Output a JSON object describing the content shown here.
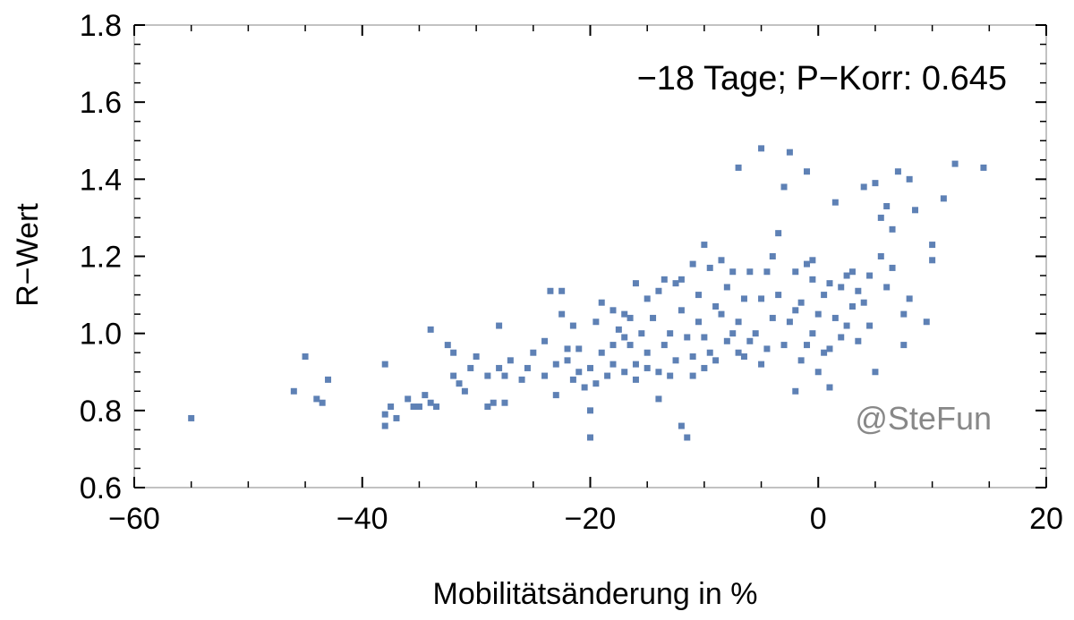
{
  "chart_data": {
    "type": "scatter",
    "title": "",
    "annotation": "−18 Tage; P−Korr: 0.645",
    "watermark": "@SteFun",
    "xlabel": "Mobilitätsänderung in %",
    "ylabel": "R−Wert",
    "xlim": [
      -60,
      20
    ],
    "ylim": [
      0.6,
      1.8
    ],
    "xticks": [
      -60,
      -40,
      -20,
      0,
      20
    ],
    "xtick_labels": [
      "−60",
      "−40",
      "−20",
      "0",
      "20"
    ],
    "yticks": [
      0.6,
      0.8,
      1.0,
      1.2,
      1.4,
      1.6,
      1.8
    ],
    "ytick_labels": [
      "0.6",
      "0.8",
      "1.0",
      "1.2",
      "1.4",
      "1.6",
      "1.8"
    ],
    "grid": false,
    "marker_color": "#5e81b5",
    "points": [
      [
        -55,
        0.78
      ],
      [
        -46,
        0.85
      ],
      [
        -45,
        0.94
      ],
      [
        -44,
        0.83
      ],
      [
        -43,
        0.88
      ],
      [
        -43.5,
        0.82
      ],
      [
        -38,
        0.92
      ],
      [
        -38,
        0.79
      ],
      [
        -38,
        0.76
      ],
      [
        -37.5,
        0.81
      ],
      [
        -37,
        0.78
      ],
      [
        -36,
        0.83
      ],
      [
        -35.5,
        0.81
      ],
      [
        -35,
        0.81
      ],
      [
        -34.5,
        0.84
      ],
      [
        -34,
        1.01
      ],
      [
        -34,
        0.82
      ],
      [
        -33.5,
        0.81
      ],
      [
        -32.5,
        0.97
      ],
      [
        -32,
        0.95
      ],
      [
        -32,
        0.89
      ],
      [
        -31.5,
        0.87
      ],
      [
        -31,
        0.85
      ],
      [
        -30.5,
        0.91
      ],
      [
        -30,
        0.94
      ],
      [
        -29,
        0.89
      ],
      [
        -29,
        0.81
      ],
      [
        -28.5,
        0.82
      ],
      [
        -28,
        1.02
      ],
      [
        -28,
        0.91
      ],
      [
        -27.5,
        0.89
      ],
      [
        -27.5,
        0.82
      ],
      [
        -27,
        0.93
      ],
      [
        -26,
        0.88
      ],
      [
        -25.5,
        0.91
      ],
      [
        -25,
        0.95
      ],
      [
        -24,
        0.89
      ],
      [
        -24,
        0.98
      ],
      [
        -23.5,
        1.11
      ],
      [
        -23,
        0.92
      ],
      [
        -23,
        0.84
      ],
      [
        -22.5,
        1.11
      ],
      [
        -22.5,
        1.05
      ],
      [
        -22,
        0.93
      ],
      [
        -22,
        0.96
      ],
      [
        -21.5,
        1.02
      ],
      [
        -21,
        0.96
      ],
      [
        -21,
        0.9
      ],
      [
        -20.5,
        0.86
      ],
      [
        -20,
        0.91
      ],
      [
        -20,
        0.8
      ],
      [
        -20,
        0.73
      ],
      [
        -19.5,
        1.03
      ],
      [
        -19,
        1.08
      ],
      [
        -19,
        0.95
      ],
      [
        -18.5,
        0.89
      ],
      [
        -18,
        1.06
      ],
      [
        -18,
        0.92
      ],
      [
        -17.5,
        1.01
      ],
      [
        -17,
        1.05
      ],
      [
        -17,
        0.9
      ],
      [
        -16.5,
        0.97
      ],
      [
        -16,
        1.13
      ],
      [
        -16,
        0.88
      ],
      [
        -15.5,
        1.0
      ],
      [
        -15,
        1.09
      ],
      [
        -15,
        0.95
      ],
      [
        -14.5,
        1.04
      ],
      [
        -14,
        0.9
      ],
      [
        -14,
        0.83
      ],
      [
        -13.5,
        1.14
      ],
      [
        -13,
        1.0
      ],
      [
        -12.5,
        0.93
      ],
      [
        -12,
        1.14
      ],
      [
        -12,
        0.76
      ],
      [
        -11.5,
        0.73
      ],
      [
        -11,
        1.18
      ],
      [
        -11,
        0.89
      ],
      [
        -10.5,
        1.03
      ],
      [
        -10,
        0.99
      ],
      [
        -10,
        1.23
      ],
      [
        -9.5,
        0.95
      ],
      [
        -9,
        1.07
      ],
      [
        -8.5,
        1.19
      ],
      [
        -8,
        0.98
      ],
      [
        -7.5,
        1.16
      ],
      [
        -7,
        1.43
      ],
      [
        -7,
        1.03
      ],
      [
        -6.5,
        0.94
      ],
      [
        -6,
        1.16
      ],
      [
        -5.5,
        1.0
      ],
      [
        -5,
        1.48
      ],
      [
        -5,
        1.09
      ],
      [
        -4.5,
        1.16
      ],
      [
        -4,
        1.2
      ],
      [
        -3.5,
        1.26
      ],
      [
        -3,
        1.38
      ],
      [
        -2.5,
        1.47
      ],
      [
        -2.5,
        1.03
      ],
      [
        -2,
        1.16
      ],
      [
        -2,
        0.85
      ],
      [
        -1.5,
        1.08
      ],
      [
        -1,
        1.42
      ],
      [
        -1,
        0.97
      ],
      [
        -0.5,
        1.19
      ],
      [
        0,
        1.05
      ],
      [
        0.5,
        0.95
      ],
      [
        1,
        0.86
      ],
      [
        1.5,
        1.34
      ],
      [
        2,
        1.12
      ],
      [
        2.5,
        1.02
      ],
      [
        3,
        1.07
      ],
      [
        3.5,
        0.98
      ],
      [
        4,
        1.38
      ],
      [
        4.5,
        1.15
      ],
      [
        5,
        1.39
      ],
      [
        5,
        0.9
      ],
      [
        5.5,
        1.3
      ],
      [
        6,
        1.33
      ],
      [
        6.5,
        1.27
      ],
      [
        7,
        1.42
      ],
      [
        7.5,
        1.05
      ],
      [
        8,
        1.4
      ],
      [
        8.5,
        1.32
      ],
      [
        9.5,
        1.03
      ],
      [
        10,
        1.23
      ],
      [
        10,
        1.19
      ],
      [
        11,
        1.35
      ],
      [
        12,
        1.44
      ],
      [
        14.5,
        1.43
      ],
      [
        -0.5,
        1.14
      ],
      [
        1,
        1.13
      ],
      [
        3.5,
        1.11
      ],
      [
        6,
        1.12
      ],
      [
        7.5,
        0.97
      ],
      [
        -1.5,
        0.93
      ],
      [
        -6.5,
        1.09
      ],
      [
        -9,
        0.93
      ],
      [
        -16,
        0.92
      ],
      [
        -18,
        0.97
      ],
      [
        -13,
        0.89
      ],
      [
        -11,
        0.94
      ],
      [
        -8,
        1.12
      ],
      [
        -4,
        1.04
      ],
      [
        -3,
        0.97
      ],
      [
        0,
        0.9
      ],
      [
        2,
        0.99
      ],
      [
        4,
        1.08
      ],
      [
        5.5,
        1.2
      ],
      [
        -12,
        1.06
      ],
      [
        -14,
        1.11
      ],
      [
        -17,
        0.99
      ],
      [
        -19.5,
        0.87
      ],
      [
        -21.5,
        0.88
      ],
      [
        -15,
        0.91
      ],
      [
        -10,
        0.91
      ],
      [
        -7,
        0.95
      ],
      [
        -5,
        0.92
      ],
      [
        -3.5,
        1.1
      ],
      [
        -1,
        1.18
      ],
      [
        1.5,
        1.04
      ],
      [
        3,
        1.16
      ],
      [
        6.5,
        1.17
      ],
      [
        8,
        1.09
      ],
      [
        -9.5,
        1.17
      ],
      [
        -8.5,
        1.05
      ],
      [
        -6,
        0.98
      ],
      [
        -2,
        1.06
      ],
      [
        0.5,
        1.1
      ],
      [
        2.5,
        1.15
      ],
      [
        -16.5,
        1.04
      ],
      [
        -13.5,
        0.97
      ],
      [
        -11.5,
        0.99
      ],
      [
        -10.5,
        1.1
      ],
      [
        -7.5,
        1.0
      ],
      [
        -4.5,
        0.96
      ],
      [
        -0.5,
        1.0
      ],
      [
        1,
        0.96
      ],
      [
        4.5,
        1.02
      ],
      [
        -12.5,
        1.13
      ]
    ]
  }
}
